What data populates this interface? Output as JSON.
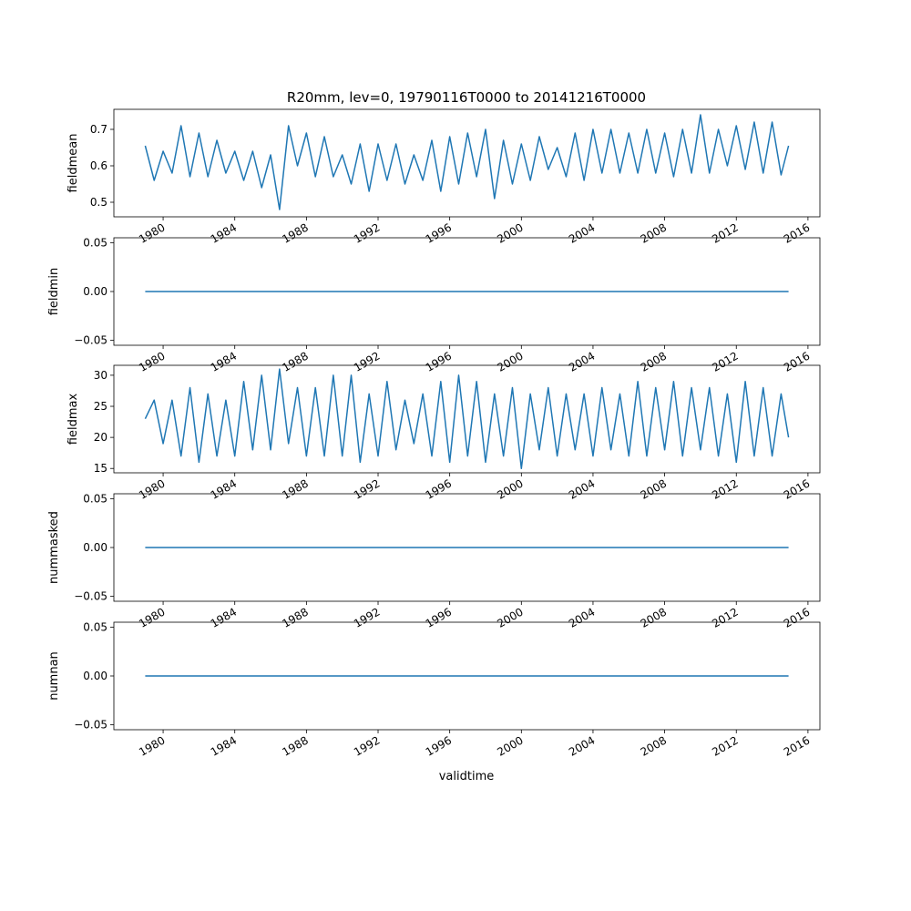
{
  "title": "R20mm, lev=0, 19790116T0000 to 20141216T0000",
  "xlabel": "validtime",
  "series_color": "#1f77b4",
  "chart_data": [
    {
      "type": "line",
      "ylabel": "fieldmean",
      "x_ticks": [
        "1980",
        "1984",
        "1988",
        "1992",
        "1996",
        "2000",
        "2004",
        "2008",
        "2012",
        "2016"
      ],
      "y_ticks": [
        "0.5",
        "0.6",
        "0.7"
      ],
      "ylim": [
        0.46,
        0.755
      ],
      "xlim": [
        "1977-04-01",
        "2016-09-01"
      ],
      "x": [
        "1979-01",
        "1979-07",
        "1980-01",
        "1980-07",
        "1981-01",
        "1981-07",
        "1982-01",
        "1982-07",
        "1983-01",
        "1983-07",
        "1984-01",
        "1984-07",
        "1985-01",
        "1985-07",
        "1986-01",
        "1986-07",
        "1987-01",
        "1987-07",
        "1988-01",
        "1988-07",
        "1989-01",
        "1989-07",
        "1990-01",
        "1990-07",
        "1991-01",
        "1991-07",
        "1992-01",
        "1992-07",
        "1993-01",
        "1993-07",
        "1994-01",
        "1994-07",
        "1995-01",
        "1995-07",
        "1996-01",
        "1996-07",
        "1997-01",
        "1997-07",
        "1998-01",
        "1998-07",
        "1999-01",
        "1999-07",
        "2000-01",
        "2000-07",
        "2001-01",
        "2001-07",
        "2002-01",
        "2002-07",
        "2003-01",
        "2003-07",
        "2004-01",
        "2004-07",
        "2005-01",
        "2005-07",
        "2006-01",
        "2006-07",
        "2007-01",
        "2007-07",
        "2008-01",
        "2008-07",
        "2009-01",
        "2009-07",
        "2010-01",
        "2010-07",
        "2011-01",
        "2011-07",
        "2012-01",
        "2012-07",
        "2013-01",
        "2013-07",
        "2014-01",
        "2014-07",
        "2014-12"
      ],
      "values": [
        0.655,
        0.56,
        0.64,
        0.58,
        0.71,
        0.57,
        0.69,
        0.57,
        0.67,
        0.58,
        0.64,
        0.56,
        0.64,
        0.54,
        0.63,
        0.48,
        0.71,
        0.6,
        0.69,
        0.57,
        0.68,
        0.57,
        0.63,
        0.55,
        0.66,
        0.53,
        0.66,
        0.56,
        0.66,
        0.55,
        0.63,
        0.56,
        0.67,
        0.53,
        0.68,
        0.55,
        0.69,
        0.57,
        0.7,
        0.51,
        0.67,
        0.55,
        0.66,
        0.56,
        0.68,
        0.59,
        0.65,
        0.57,
        0.69,
        0.56,
        0.7,
        0.58,
        0.7,
        0.58,
        0.69,
        0.58,
        0.7,
        0.58,
        0.69,
        0.57,
        0.7,
        0.58,
        0.74,
        0.58,
        0.7,
        0.6,
        0.71,
        0.59,
        0.72,
        0.58,
        0.72,
        0.575,
        0.655
      ]
    },
    {
      "type": "line",
      "ylabel": "fieldmin",
      "x_ticks": [
        "1980",
        "1984",
        "1988",
        "1992",
        "1996",
        "2000",
        "2004",
        "2008",
        "2012",
        "2016"
      ],
      "y_ticks": [
        "−0.05",
        "0.00",
        "0.05"
      ],
      "ylim": [
        -0.055,
        0.055
      ],
      "xlim": [
        "1977-04-01",
        "2016-09-01"
      ],
      "x": [
        "1979-01",
        "2014-12"
      ],
      "values": [
        0.0,
        0.0
      ]
    },
    {
      "type": "line",
      "ylabel": "fieldmax",
      "x_ticks": [
        "1980",
        "1984",
        "1988",
        "1992",
        "1996",
        "2000",
        "2004",
        "2008",
        "2012",
        "2016"
      ],
      "y_ticks": [
        "15",
        "20",
        "25",
        "30"
      ],
      "ylim": [
        14.3,
        31.6
      ],
      "xlim": [
        "1977-04-01",
        "2016-09-01"
      ],
      "x": [
        "1979-01",
        "1979-07",
        "1980-01",
        "1980-07",
        "1981-01",
        "1981-07",
        "1982-01",
        "1982-07",
        "1983-01",
        "1983-07",
        "1984-01",
        "1984-07",
        "1985-01",
        "1985-07",
        "1986-01",
        "1986-07",
        "1987-01",
        "1987-07",
        "1988-01",
        "1988-07",
        "1989-01",
        "1989-07",
        "1990-01",
        "1990-07",
        "1991-01",
        "1991-07",
        "1992-01",
        "1992-07",
        "1993-01",
        "1993-07",
        "1994-01",
        "1994-07",
        "1995-01",
        "1995-07",
        "1996-01",
        "1996-07",
        "1997-01",
        "1997-07",
        "1998-01",
        "1998-07",
        "1999-01",
        "1999-07",
        "2000-01",
        "2000-07",
        "2001-01",
        "2001-07",
        "2002-01",
        "2002-07",
        "2003-01",
        "2003-07",
        "2004-01",
        "2004-07",
        "2005-01",
        "2005-07",
        "2006-01",
        "2006-07",
        "2007-01",
        "2007-07",
        "2008-01",
        "2008-07",
        "2009-01",
        "2009-07",
        "2010-01",
        "2010-07",
        "2011-01",
        "2011-07",
        "2012-01",
        "2012-07",
        "2013-01",
        "2013-07",
        "2014-01",
        "2014-07",
        "2014-12"
      ],
      "values": [
        23,
        26,
        19,
        26,
        17,
        28,
        16,
        27,
        17,
        26,
        17,
        29,
        18,
        30,
        18,
        31,
        19,
        28,
        17,
        28,
        17,
        30,
        17,
        30,
        16,
        27,
        17,
        29,
        18,
        26,
        19,
        27,
        17,
        29,
        16,
        30,
        17,
        29,
        16,
        27,
        17,
        28,
        15,
        27,
        18,
        28,
        17,
        27,
        18,
        27,
        17,
        28,
        18,
        27,
        17,
        29,
        17,
        28,
        18,
        29,
        17,
        28,
        18,
        28,
        17,
        27,
        16,
        29,
        17,
        28,
        17,
        27,
        20
      ]
    },
    {
      "type": "line",
      "ylabel": "nummasked",
      "x_ticks": [
        "1980",
        "1984",
        "1988",
        "1992",
        "1996",
        "2000",
        "2004",
        "2008",
        "2012",
        "2016"
      ],
      "y_ticks": [
        "−0.05",
        "0.00",
        "0.05"
      ],
      "ylim": [
        -0.055,
        0.055
      ],
      "xlim": [
        "1977-04-01",
        "2016-09-01"
      ],
      "x": [
        "1979-01",
        "2014-12"
      ],
      "values": [
        0.0,
        0.0
      ]
    },
    {
      "type": "line",
      "ylabel": "numnan",
      "x_ticks": [
        "1980",
        "1984",
        "1988",
        "1992",
        "1996",
        "2000",
        "2004",
        "2008",
        "2012",
        "2016"
      ],
      "y_ticks": [
        "−0.05",
        "0.00",
        "0.05"
      ],
      "ylim": [
        -0.055,
        0.055
      ],
      "xlim": [
        "1977-04-01",
        "2016-09-01"
      ],
      "x": [
        "1979-01",
        "2014-12"
      ],
      "values": [
        0.0,
        0.0
      ]
    }
  ]
}
